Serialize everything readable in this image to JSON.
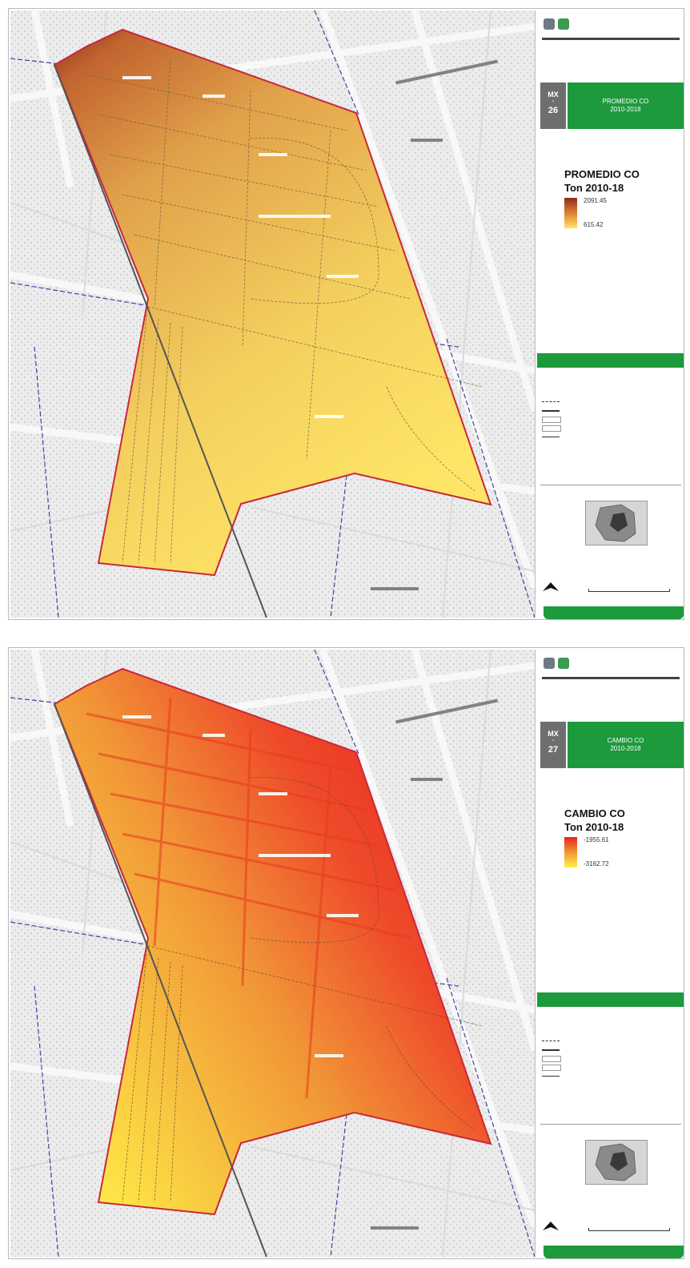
{
  "colors": {
    "green": "#1c9a3c",
    "ramp_promedio": [
      "#8b2d1a",
      "#d9772f",
      "#ffe567"
    ],
    "ramp_cambio": [
      "#e8231c",
      "#f19637",
      "#ffef4a"
    ]
  },
  "panels": [
    {
      "sheet_code": "MX",
      "sheet_dash": "-",
      "sheet_number": "26",
      "title_lines": [
        "PROMEDIO CO",
        "2010-2018"
      ],
      "legend_title": "PROMEDIO CO",
      "legend_subtitle": "Ton 2010-18",
      "legend_max": "2091.45",
      "legend_min": "615.42",
      "ramp": "promedio"
    },
    {
      "sheet_code": "MX",
      "sheet_dash": "-",
      "sheet_number": "27",
      "title_lines": [
        "CAMBIO CO",
        "2010-2018"
      ],
      "legend_title": "CAMBIO CO",
      "legend_subtitle": "Ton 2010-18",
      "legend_max": "-1955.61",
      "legend_min": "-3162.72",
      "ramp": "cambio"
    }
  ]
}
